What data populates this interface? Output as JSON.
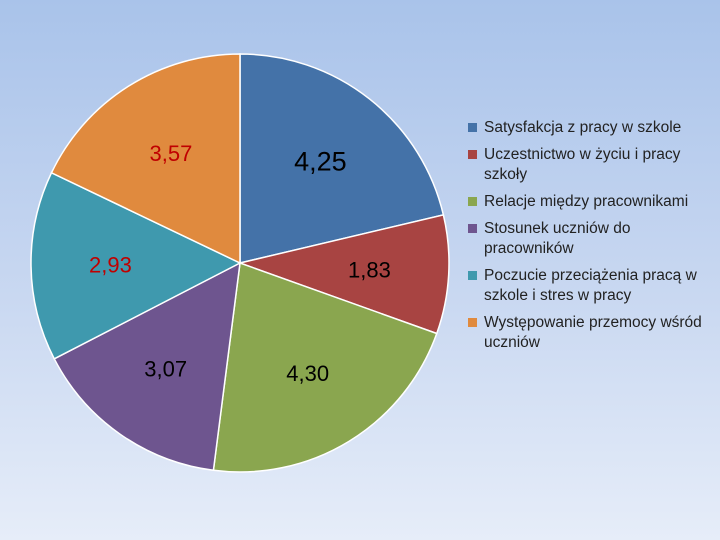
{
  "chart_data": {
    "type": "pie",
    "slices": [
      {
        "label": "Satysfakcja z pracy w szkole",
        "value": 4.25,
        "value_label": "4,25",
        "color": "#4472a8",
        "value_color": "#000000"
      },
      {
        "label": "Uczestnictwo w życiu i pracy szkoły",
        "value": 1.83,
        "value_label": "1,83",
        "color": "#a84442",
        "value_color": "#000000"
      },
      {
        "label": "Relacje między pracownikami",
        "value": 4.3,
        "value_label": "4,30",
        "color": "#8aa64f",
        "value_color": "#000000"
      },
      {
        "label": "Stosunek uczniów do pracowników",
        "value": 3.07,
        "value_label": "3,07",
        "color": "#6e558f",
        "value_color": "#000000"
      },
      {
        "label": "Poczucie przeciążenia pracą w szkole i stres w pracy",
        "value": 2.93,
        "value_label": "2,93",
        "color": "#3f99ae",
        "value_color": "#c00000"
      },
      {
        "label": "Występowanie przemocy wśród uczniów",
        "value": 3.57,
        "value_label": "3,57",
        "color": "#e08a3e",
        "value_color": "#c00000"
      }
    ],
    "start": "top",
    "direction": "clockwise",
    "legend_position": "right"
  }
}
